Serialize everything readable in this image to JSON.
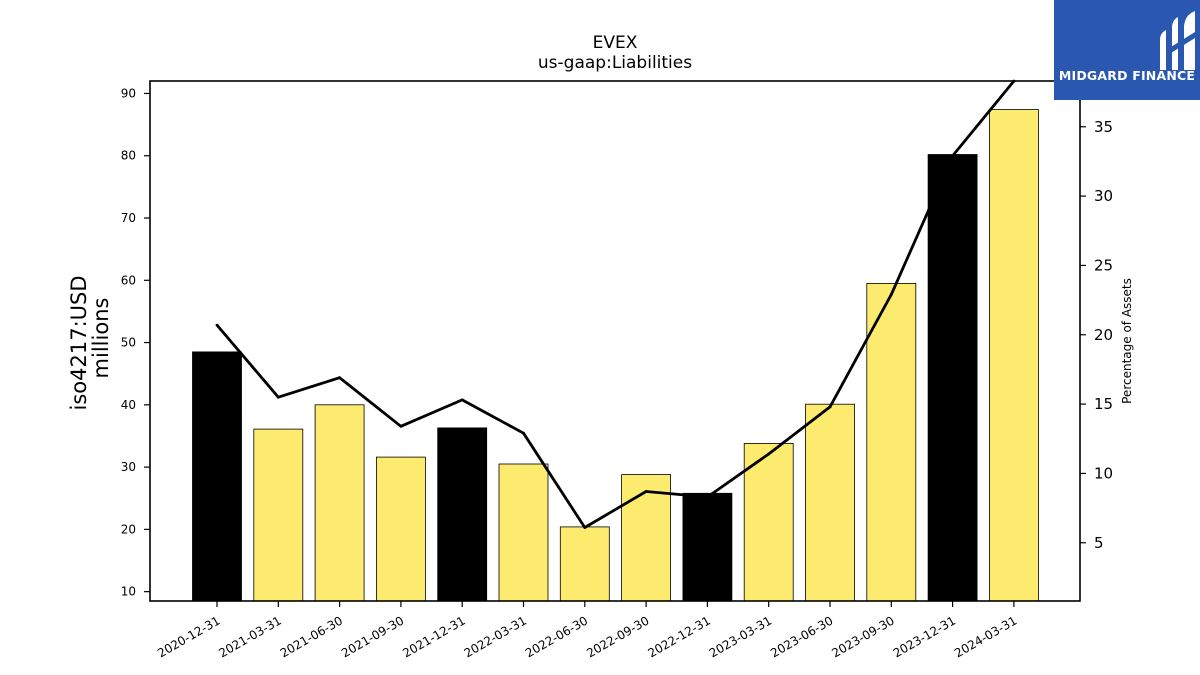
{
  "chart_data": {
    "type": "bar",
    "title": "EVEX",
    "subtitle": "us-gaap:Liabilities",
    "ylabel_left_line1": "iso4217:USD",
    "ylabel_left_line2": "millions",
    "ylabel_right": "Percentage of Assets",
    "categories": [
      "2020-12-31",
      "2021-03-31",
      "2021-06-30",
      "2021-09-30",
      "2021-12-31",
      "2022-03-31",
      "2022-06-30",
      "2022-09-30",
      "2022-12-31",
      "2023-03-31",
      "2023-06-30",
      "2023-09-30",
      "2023-12-31",
      "2024-03-31"
    ],
    "values": [
      48.5,
      36.1,
      40.0,
      31.6,
      36.3,
      30.5,
      20.4,
      28.8,
      25.8,
      33.8,
      40.1,
      59.5,
      80.2,
      87.4
    ],
    "bar_colors": [
      "#000000",
      "#fdeb6f",
      "#fdeb6f",
      "#fdeb6f",
      "#000000",
      "#fdeb6f",
      "#fdeb6f",
      "#fdeb6f",
      "#000000",
      "#fdeb6f",
      "#fdeb6f",
      "#fdeb6f",
      "#000000",
      "#fdeb6f"
    ],
    "line_series": {
      "axis": "right",
      "values": [
        20.7,
        15.5,
        16.9,
        13.4,
        15.3,
        12.9,
        6.1,
        8.7,
        8.3,
        11.4,
        14.8,
        22.9,
        32.9,
        38.3
      ],
      "color": "#000000"
    },
    "ylim_left": [
      8.5,
      92
    ],
    "yticks_left": [
      10,
      20,
      30,
      40,
      50,
      60,
      70,
      80,
      90
    ],
    "ylim_right": [
      0.8,
      38.3
    ],
    "yticks_right": [
      5,
      10,
      15,
      20,
      25,
      30,
      35
    ],
    "grid": false
  },
  "logo": {
    "text": "MIDGARD FINANCE",
    "background": "#2a58b0"
  }
}
